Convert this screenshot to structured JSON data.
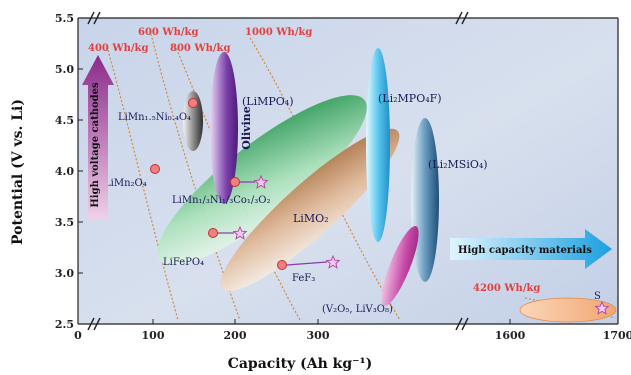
{
  "chart_data": {
    "type": "scatter",
    "title": "",
    "xlabel": "Capacity (Ah kg⁻¹)",
    "ylabel": "Potential (V vs. Li)",
    "xlim_segments": [
      [
        0,
        350
      ],
      [
        1500,
        1700
      ]
    ],
    "ylim": [
      2.5,
      5.5
    ],
    "x_ticks": [
      0,
      100,
      200,
      300,
      1600,
      1700
    ],
    "y_ticks": [
      2.5,
      3.0,
      3.5,
      4.0,
      4.5,
      5.0,
      5.5
    ],
    "energy_density_curves": [
      "400 Wh/kg",
      "600 Wh/kg",
      "800 Wh/kg",
      "1000 Wh/kg",
      "4200 Wh/kg"
    ],
    "regions": [
      {
        "label": "Olivine",
        "color": "#5b2a8c"
      },
      {
        "label": "(LiMPO₄)",
        "color": "#1f8f4a"
      },
      {
        "label": "(Li₂MPO₄F)",
        "color": "#2aa6d6"
      },
      {
        "label": "(Li₂MSiO₄)",
        "color": "#1f5f8f"
      },
      {
        "label": "LiMO₂",
        "color": "#a86a3a"
      }
    ],
    "materials": [
      {
        "label": "LiMn₁.₅Ni₀.₄O₄",
        "x": 135,
        "y": 4.68
      },
      {
        "label": "LiMn₂O₄",
        "x": 108,
        "y": 4.03
      },
      {
        "label": "LiMn₁/₃Ni₁/₃Co₁/₃O₂",
        "x": 160,
        "y": 3.9
      },
      {
        "label": "LiFePO₄",
        "x": 148,
        "y": 3.4
      },
      {
        "label": "FeF₃",
        "x": 198,
        "y": 3.08
      },
      {
        "label": "(V₂O₅, LiV₃O₈)",
        "x": 290,
        "y": 2.75
      },
      {
        "label": "S",
        "x": 1685,
        "y": 2.65
      }
    ],
    "arrows": [
      {
        "label": "High voltage cathodes",
        "direction": "up"
      },
      {
        "label": "High capacity materials",
        "direction": "right"
      }
    ]
  }
}
